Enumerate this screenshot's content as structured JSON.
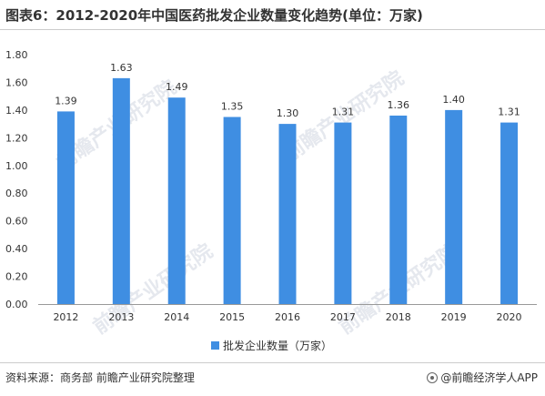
{
  "title": "图表6：2012-2020年中国医药批发企业数量变化趋势(单位：万家)",
  "chart_data": {
    "type": "bar",
    "categories": [
      "2012",
      "2013",
      "2014",
      "2015",
      "2016",
      "2017",
      "2018",
      "2019",
      "2020"
    ],
    "series": [
      {
        "name": "批发企业数量（万家）",
        "values": [
          1.39,
          1.63,
          1.49,
          1.35,
          1.3,
          1.31,
          1.36,
          1.4,
          1.31
        ]
      }
    ],
    "value_labels": [
      "1.39",
      "1.63",
      "1.49",
      "1.35",
      "1.30",
      "1.31",
      "1.36",
      "1.40",
      "1.31"
    ],
    "yticks": [
      "0.00",
      "0.20",
      "0.40",
      "0.60",
      "0.80",
      "1.00",
      "1.20",
      "1.40",
      "1.60",
      "1.80"
    ],
    "ylim": [
      0,
      1.8
    ],
    "xlabel": "",
    "ylabel": "",
    "grid": false,
    "legend_position": "bottom-center",
    "bar_color": "#3f8ee2"
  },
  "legend": {
    "label": "批发企业数量（万家）"
  },
  "footer": {
    "source": "资料来源：商务部 前瞻产业研究院整理",
    "brand": "@前瞻经济学人APP"
  },
  "watermark": {
    "text": "前瞻产业研究院"
  },
  "colors": {
    "bar": "#3f8ee2",
    "axis": "#999999",
    "text": "#333333"
  }
}
